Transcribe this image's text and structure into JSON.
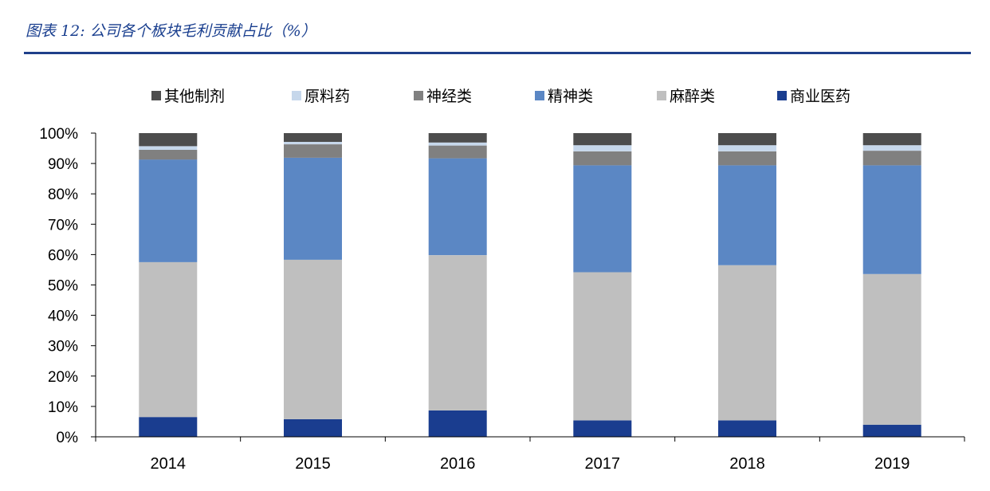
{
  "header": {
    "title": "图表 12: 公司各个板块毛利贡献占比（%）"
  },
  "chart_data": {
    "type": "bar",
    "stacked": true,
    "categories": [
      "2014",
      "2015",
      "2016",
      "2017",
      "2018",
      "2019"
    ],
    "ylim": [
      0,
      100
    ],
    "yticks": [
      "0%",
      "10%",
      "20%",
      "30%",
      "40%",
      "50%",
      "60%",
      "70%",
      "80%",
      "90%",
      "100%"
    ],
    "legend_position": "top",
    "grid": false,
    "series": [
      {
        "name": "商业医药",
        "color": "#1a3d8f",
        "values": [
          6.5,
          5.8,
          8.7,
          5.4,
          5.4,
          4.0
        ]
      },
      {
        "name": "麻醉类",
        "color": "#bfbfbf",
        "values": [
          51.0,
          52.5,
          51.1,
          48.8,
          51.1,
          49.6
        ]
      },
      {
        "name": "精神类",
        "color": "#5b87c4",
        "values": [
          33.8,
          33.6,
          31.9,
          35.2,
          32.9,
          35.8
        ]
      },
      {
        "name": "神经类",
        "color": "#808080",
        "values": [
          3.2,
          4.4,
          4.2,
          4.6,
          4.6,
          4.8
        ]
      },
      {
        "name": "原料药",
        "color": "#c6d7eb",
        "values": [
          1.2,
          0.8,
          1.0,
          2.0,
          2.0,
          1.8
        ]
      },
      {
        "name": "其他制剂",
        "color": "#4d4d4d",
        "values": [
          4.3,
          2.9,
          3.1,
          4.0,
          4.0,
          4.0
        ]
      }
    ],
    "legend_order": [
      "其他制剂",
      "原料药",
      "神经类",
      "精神类",
      "麻醉类",
      "商业医药"
    ]
  }
}
